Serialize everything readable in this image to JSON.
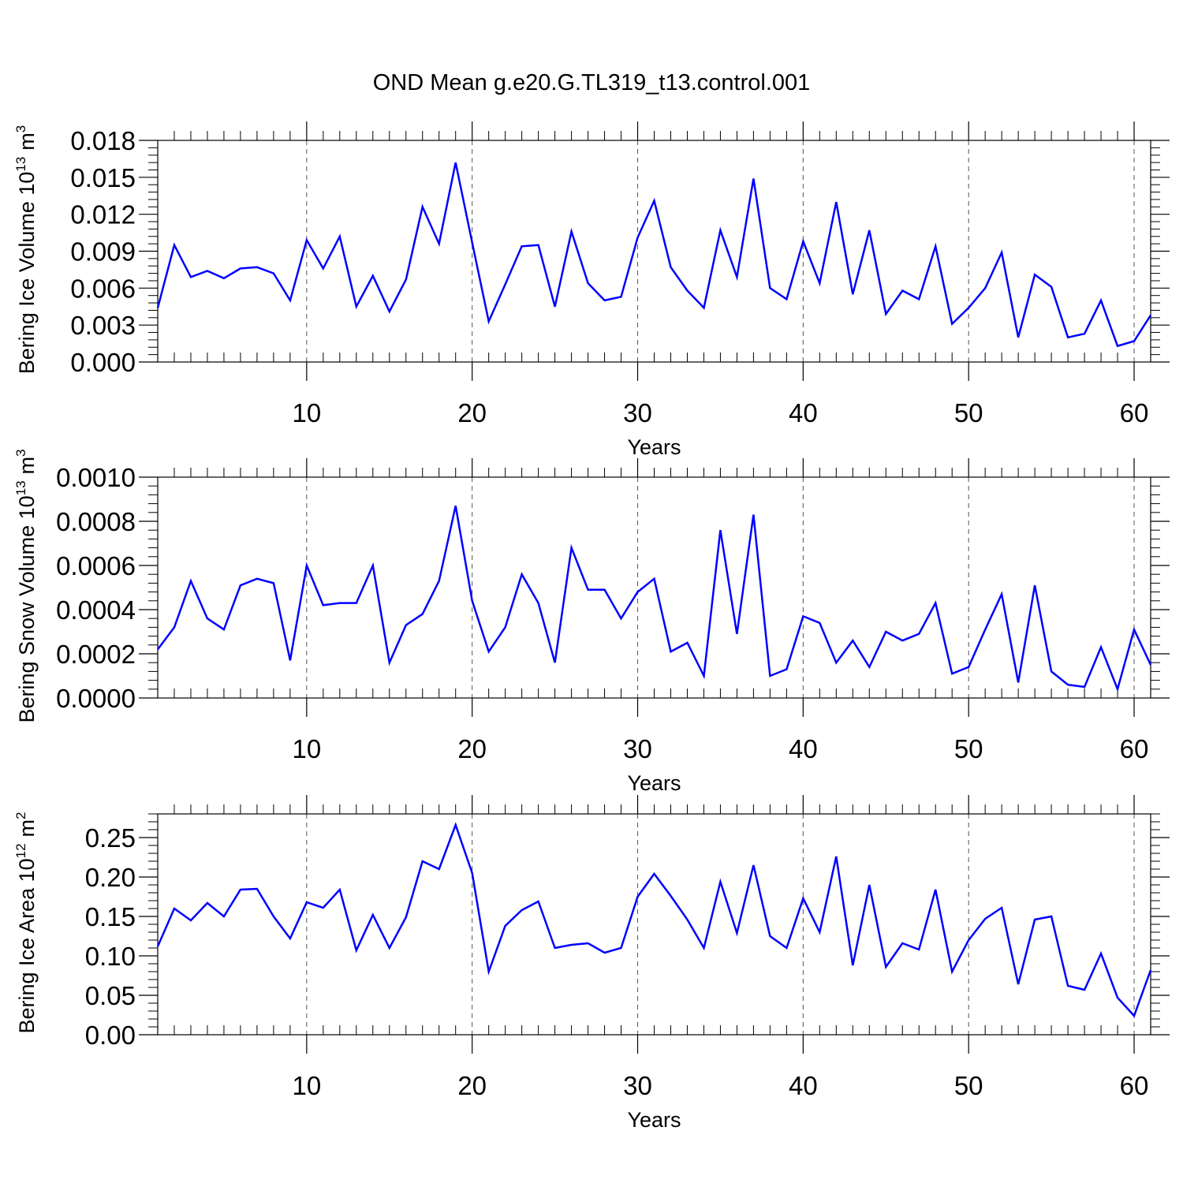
{
  "figure": {
    "title": "OND Mean g.e20.G.TL319_t13.control.001"
  },
  "chart_data": [
    {
      "type": "line",
      "name": "ice-volume",
      "title": "OND Mean g.e20.G.TL319_t13.control.001",
      "xlabel": "Years",
      "ylabel": "Bering Ice Volume 10",
      "ylabel_sup": "13",
      "ylabel_unit": "m",
      "ylabel_unit_sup": "3",
      "xlim": [
        1,
        61
      ],
      "ylim": [
        0,
        0.018
      ],
      "grid": "vertical dashed at x ticks",
      "line_color": "#0000ff",
      "x_ticks": [
        10,
        20,
        30,
        40,
        50,
        60
      ],
      "x_tick_labels": [
        "10",
        "20",
        "30",
        "40",
        "50",
        "60"
      ],
      "y_ticks": [
        0,
        0.003,
        0.006,
        0.009,
        0.012,
        0.015,
        0.018
      ],
      "y_tick_labels": [
        "0.000",
        "0.003",
        "0.006",
        "0.009",
        "0.012",
        "0.015",
        "0.018"
      ],
      "x": [
        1,
        2,
        3,
        4,
        5,
        6,
        7,
        8,
        9,
        10,
        11,
        12,
        13,
        14,
        15,
        16,
        17,
        18,
        19,
        20,
        21,
        22,
        23,
        24,
        25,
        26,
        27,
        28,
        29,
        30,
        31,
        32,
        33,
        34,
        35,
        36,
        37,
        38,
        39,
        40,
        41,
        42,
        43,
        44,
        45,
        46,
        47,
        48,
        49,
        50,
        51,
        52,
        53,
        54,
        55,
        56,
        57,
        58,
        59,
        60,
        61
      ],
      "values": [
        0.0044,
        0.0095,
        0.0069,
        0.0074,
        0.0068,
        0.0076,
        0.0077,
        0.0072,
        0.005,
        0.0099,
        0.0076,
        0.0102,
        0.0045,
        0.007,
        0.0041,
        0.0067,
        0.0126,
        0.0096,
        0.0162,
        0.0097,
        0.0033,
        0.0063,
        0.0094,
        0.0095,
        0.0045,
        0.0106,
        0.0064,
        0.005,
        0.0053,
        0.0101,
        0.0131,
        0.0077,
        0.0058,
        0.0044,
        0.0107,
        0.0069,
        0.0149,
        0.006,
        0.0051,
        0.0098,
        0.0064,
        0.013,
        0.0055,
        0.0107,
        0.0039,
        0.0058,
        0.0051,
        0.0094,
        0.0031,
        0.0044,
        0.006,
        0.0089,
        0.002,
        0.0071,
        0.0061,
        0.002,
        0.0023,
        0.005,
        0.0013,
        0.0017,
        0.0038
      ]
    },
    {
      "type": "line",
      "name": "snow-volume",
      "xlabel": "Years",
      "ylabel": "Bering Snow Volume 10",
      "ylabel_sup": "13",
      "ylabel_unit": "m",
      "ylabel_unit_sup": "3",
      "xlim": [
        1,
        61
      ],
      "ylim": [
        0,
        0.001
      ],
      "grid": "vertical dashed at x ticks",
      "line_color": "#0000ff",
      "x_ticks": [
        10,
        20,
        30,
        40,
        50,
        60
      ],
      "x_tick_labels": [
        "10",
        "20",
        "30",
        "40",
        "50",
        "60"
      ],
      "y_ticks": [
        0,
        0.0002,
        0.0004,
        0.0006,
        0.0008,
        0.001
      ],
      "y_tick_labels": [
        "0.0000",
        "0.0002",
        "0.0004",
        "0.0006",
        "0.0008",
        "0.0010"
      ],
      "x": [
        1,
        2,
        3,
        4,
        5,
        6,
        7,
        8,
        9,
        10,
        11,
        12,
        13,
        14,
        15,
        16,
        17,
        18,
        19,
        20,
        21,
        22,
        23,
        24,
        25,
        26,
        27,
        28,
        29,
        30,
        31,
        32,
        33,
        34,
        35,
        36,
        37,
        38,
        39,
        40,
        41,
        42,
        43,
        44,
        45,
        46,
        47,
        48,
        49,
        50,
        51,
        52,
        53,
        54,
        55,
        56,
        57,
        58,
        59,
        60,
        61
      ],
      "values": [
        0.00022,
        0.00032,
        0.00053,
        0.00036,
        0.00031,
        0.00051,
        0.00054,
        0.00052,
        0.00017,
        0.0006,
        0.00042,
        0.00043,
        0.00043,
        0.0006,
        0.00016,
        0.00033,
        0.00038,
        0.00053,
        0.00087,
        0.00044,
        0.00021,
        0.00032,
        0.00056,
        0.00043,
        0.00016,
        0.00068,
        0.00049,
        0.00049,
        0.00036,
        0.00048,
        0.00054,
        0.00021,
        0.00025,
        0.0001,
        0.00076,
        0.00029,
        0.00083,
        0.0001,
        0.00013,
        0.00037,
        0.00034,
        0.00016,
        0.00026,
        0.00014,
        0.0003,
        0.00026,
        0.00029,
        0.00043,
        0.00011,
        0.00014,
        0.00031,
        0.00047,
        7e-05,
        0.00051,
        0.00012,
        6e-05,
        5e-05,
        0.00023,
        4e-05,
        0.00031,
        0.00015
      ]
    },
    {
      "type": "line",
      "name": "ice-area",
      "xlabel": "Years",
      "ylabel": "Bering Ice Area 10",
      "ylabel_sup": "12",
      "ylabel_unit": "m",
      "ylabel_unit_sup": "2",
      "xlim": [
        1,
        61
      ],
      "ylim": [
        0,
        0.28
      ],
      "grid": "vertical dashed at x ticks",
      "line_color": "#0000ff",
      "x_ticks": [
        10,
        20,
        30,
        40,
        50,
        60
      ],
      "x_tick_labels": [
        "10",
        "20",
        "30",
        "40",
        "50",
        "60"
      ],
      "y_ticks": [
        0,
        0.05,
        0.1,
        0.15,
        0.2,
        0.25
      ],
      "y_tick_labels": [
        "0.00",
        "0.05",
        "0.10",
        "0.15",
        "0.20",
        "0.25"
      ],
      "x": [
        1,
        2,
        3,
        4,
        5,
        6,
        7,
        8,
        9,
        10,
        11,
        12,
        13,
        14,
        15,
        16,
        17,
        18,
        19,
        20,
        21,
        22,
        23,
        24,
        25,
        26,
        27,
        28,
        29,
        30,
        31,
        32,
        33,
        34,
        35,
        36,
        37,
        38,
        39,
        40,
        41,
        42,
        43,
        44,
        45,
        46,
        47,
        48,
        49,
        50,
        51,
        52,
        53,
        54,
        55,
        56,
        57,
        58,
        59,
        60,
        61
      ],
      "values": [
        0.112,
        0.16,
        0.145,
        0.167,
        0.15,
        0.184,
        0.185,
        0.15,
        0.122,
        0.168,
        0.161,
        0.184,
        0.107,
        0.152,
        0.11,
        0.149,
        0.22,
        0.21,
        0.266,
        0.205,
        0.08,
        0.138,
        0.158,
        0.169,
        0.11,
        0.114,
        0.116,
        0.104,
        0.11,
        0.175,
        0.204,
        0.176,
        0.146,
        0.11,
        0.194,
        0.129,
        0.215,
        0.125,
        0.11,
        0.173,
        0.13,
        0.226,
        0.088,
        0.19,
        0.086,
        0.116,
        0.108,
        0.184,
        0.08,
        0.12,
        0.147,
        0.161,
        0.064,
        0.146,
        0.15,
        0.062,
        0.057,
        0.103,
        0.047,
        0.024,
        0.082
      ]
    }
  ]
}
